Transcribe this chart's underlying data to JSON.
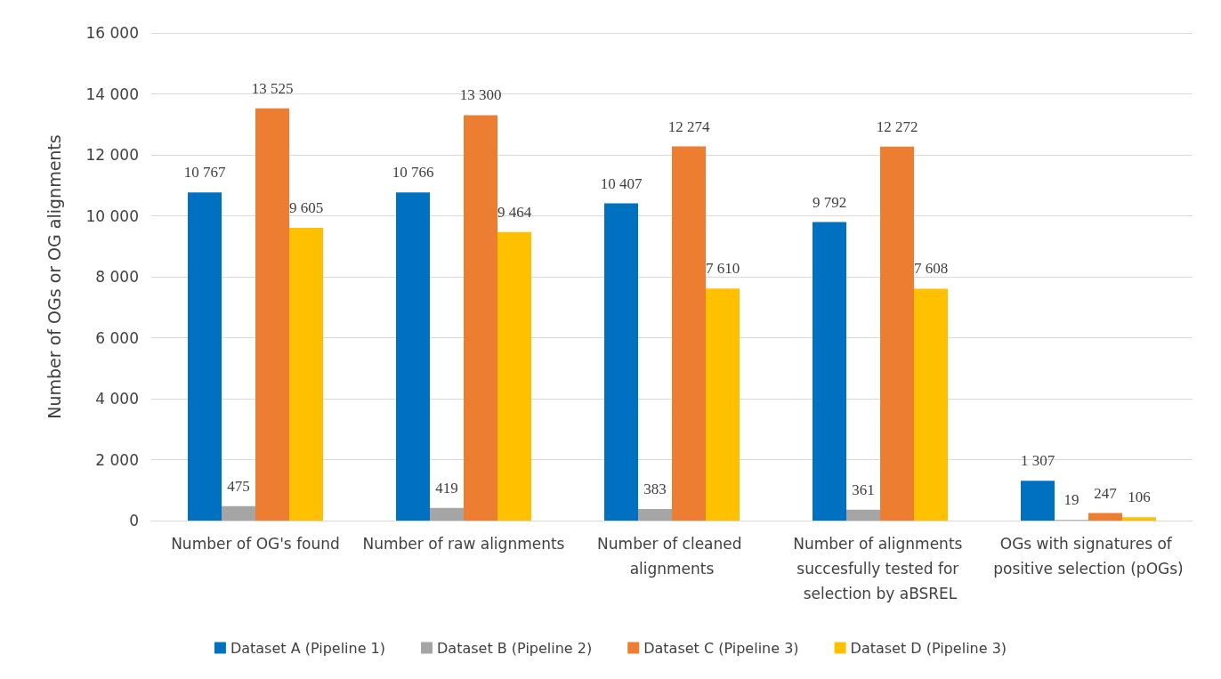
{
  "chart_data": {
    "type": "bar",
    "ylabel": "Number of OGs or OG alignments",
    "categories": [
      "Number of OG's found",
      "Number of raw alignments",
      "Number of cleaned alignments",
      "Number of alignments succesfully tested for selection by aBSREL",
      "OGs with signatures of positive selection (pOGs)"
    ],
    "series": [
      {
        "name": "Dataset A (Pipeline 1)",
        "color": "#0070c0",
        "values": [
          10767,
          10766,
          10407,
          9792,
          1307
        ],
        "value_labels": [
          "10 767",
          "10 766",
          "10 407",
          "9 792",
          "1 307"
        ]
      },
      {
        "name": "Dataset B (Pipeline 2)",
        "color": "#a5a5a5",
        "values": [
          475,
          419,
          383,
          361,
          19
        ],
        "value_labels": [
          "475",
          "419",
          "383",
          "361",
          "19"
        ]
      },
      {
        "name": "Dataset C (Pipeline 3)",
        "color": "#ed7d31",
        "values": [
          13525,
          13300,
          12274,
          12272,
          247
        ],
        "value_labels": [
          "13 525",
          "13 300",
          "12 274",
          "12 272",
          "247"
        ]
      },
      {
        "name": "Dataset D (Pipeline 3)",
        "color": "#ffc000",
        "values": [
          9605,
          9464,
          7610,
          7608,
          106
        ],
        "value_labels": [
          "9 605",
          "9 464",
          "7 610",
          "7 608",
          "106"
        ]
      }
    ],
    "ylim": [
      0,
      16000
    ],
    "yticks": [
      0,
      {
        "value": 2000,
        "label": "2 000"
      },
      {
        "value": 4000,
        "label": "4 000"
      },
      {
        "value": 6000,
        "label": "6 000"
      },
      {
        "value": 8000,
        "label": "8 000"
      },
      {
        "value": 10000,
        "label": "10 000"
      },
      {
        "value": 12000,
        "label": "12 000"
      },
      {
        "value": 14000,
        "label": "14 000"
      },
      {
        "value": 16000,
        "label": "16 000"
      }
    ],
    "grid": "y",
    "legend": "bottom"
  }
}
